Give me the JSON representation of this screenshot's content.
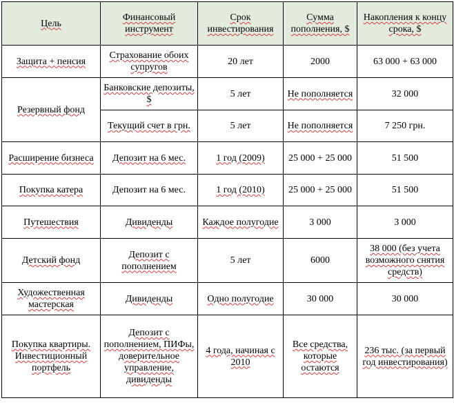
{
  "headers": {
    "goal": "Цель",
    "instrument": "Финансовый инструмент",
    "term": "Срок инвестирования",
    "deposit": "Сумма пополнения, $",
    "savings": "Накопления к концу срока, $"
  },
  "rows": [
    {
      "goal": "Защита + пенсия",
      "instrument": "Страхование обоих супругов",
      "term": "20 лет",
      "deposit": "2000",
      "savings": "63 000 + 63 000"
    },
    {
      "goal": "Резервный фонд",
      "instrument": "Банковские депозиты, $",
      "term": "5 лет",
      "deposit": "Не пополняется",
      "savings": "32 000"
    },
    {
      "instrument": "Текущий счет в грн.",
      "term": "5 лет",
      "deposit": "Не пополняется",
      "savings": "7 250 грн."
    },
    {
      "goal": "Расширение бизнеса",
      "instrument": "Депозит на 6 мес.",
      "term": "1 год (2009)",
      "deposit": "25 000 + 25 000",
      "savings": "51 500"
    },
    {
      "goal": "Покупка катера",
      "instrument": "Депозит на 6 мес.",
      "term": "1 год (2010)",
      "deposit": "25 000 + 25 000",
      "savings": "51 500"
    },
    {
      "goal": "Путешествия",
      "instrument": "Дивиденды",
      "term": "Каждое полугодие",
      "deposit": "3 000",
      "savings": "3 000"
    },
    {
      "goal": "Детский фонд",
      "instrument": "Депозит с пополнением",
      "term": "5 лет",
      "deposit": "6000",
      "savings": "38 000 (без учета возможного снятия средств)"
    },
    {
      "goal": "Художественная мастерская",
      "instrument": "Дивиденды",
      "term": "Одно полугодие",
      "deposit": "30 000",
      "savings": "30 000"
    },
    {
      "goal": "Покупка квартиры. Инвестиционный портфель",
      "instrument": "Депозит с пополнением, ПИФы, доверительное управление, дивиденды",
      "term": "4 года, начиная с 2010",
      "deposit": "Все средства, которые остаются",
      "savings": "236 тыс. (за первый год инвестирования)"
    }
  ]
}
